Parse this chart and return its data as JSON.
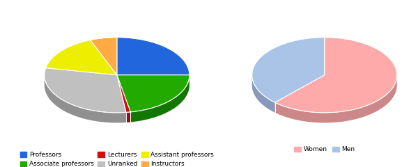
{
  "chart1": {
    "labels": [
      "Professors",
      "Associate professors",
      "Lecturers",
      "Unranked",
      "Assistant professors",
      "Instructors"
    ],
    "values": [
      25,
      22,
      1,
      30,
      16,
      6
    ],
    "colors": [
      "#2266dd",
      "#22aa00",
      "#cc1111",
      "#c0c0c0",
      "#eeee00",
      "#ffaa44"
    ],
    "side_colors": [
      "#1144aa",
      "#117700",
      "#881111",
      "#909090",
      "#aaaa00",
      "#cc7722"
    ],
    "start_angle": 90
  },
  "chart2": {
    "labels": [
      "Women",
      "Men"
    ],
    "values": [
      62,
      38
    ],
    "colors": [
      "#ffaaaa",
      "#aac4e8"
    ],
    "side_colors": [
      "#cc8888",
      "#8899bb"
    ],
    "start_angle": 90
  },
  "legend1_items": [
    [
      "Professors",
      "#2266dd"
    ],
    [
      "Associate professors",
      "#22aa00"
    ],
    [
      "Lecturers",
      "#cc1111"
    ],
    [
      "Unranked",
      "#c0c0c0"
    ],
    [
      "Assistant professors",
      "#eeee00"
    ],
    [
      "Instructors",
      "#ffaa44"
    ]
  ],
  "legend2_items": [
    [
      "Women",
      "#ffaaaa"
    ],
    [
      "Men",
      "#aac4e8"
    ]
  ],
  "fig_width": 6.0,
  "fig_height": 2.4,
  "dpi": 100
}
